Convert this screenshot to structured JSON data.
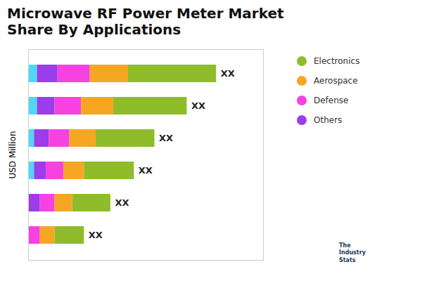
{
  "chart_data": {
    "type": "bar",
    "orientation": "horizontal",
    "stacked": true,
    "title": "Microwave RF Power Meter Market\nShare By Applications",
    "ylabel": "USD Million",
    "categories": [
      null,
      null,
      null,
      null,
      null,
      null
    ],
    "series": [
      {
        "name": null,
        "color": "#4dd9f5",
        "values": [
          3,
          3,
          2,
          2,
          0,
          0
        ]
      },
      {
        "name": "Others",
        "color": "#9b3de8",
        "values": [
          7,
          6,
          5,
          4,
          4,
          0
        ]
      },
      {
        "name": "Defense",
        "color": "#f542e0",
        "values": [
          11,
          9,
          7,
          6,
          5,
          4
        ]
      },
      {
        "name": "Aerospace",
        "color": "#f5a623",
        "values": [
          13,
          11,
          9,
          7,
          6,
          5
        ]
      },
      {
        "name": "Electronics",
        "color": "#8fbc2b",
        "values": [
          30,
          25,
          20,
          17,
          13,
          10
        ]
      }
    ],
    "xlim": [
      0,
      80
    ],
    "xticks": [],
    "tick_labels": false,
    "grid": false,
    "legend": "right",
    "annotations": [
      "XX",
      "XX",
      "XX",
      "XX",
      "XX",
      "XX",
      "The\nIndustry\nStats"
    ]
  }
}
